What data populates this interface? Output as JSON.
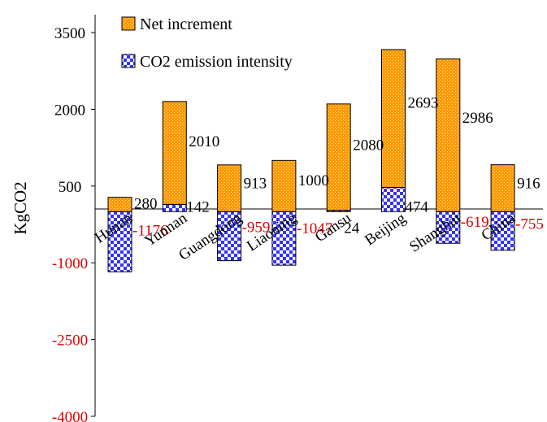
{
  "chart_data": {
    "type": "bar",
    "stacked": true,
    "categories": [
      "Hunan",
      "Yunnan",
      "Guangdong",
      "Liaoning",
      "Gansu",
      "Beijing",
      "Shanghai",
      "China"
    ],
    "series": [
      {
        "name": "CO2 emission intensity",
        "values": [
          -1176,
          142,
          -959,
          -1047,
          24,
          474,
          -619,
          -755
        ],
        "color": "#3333ff",
        "pattern": "checker"
      },
      {
        "name": "Net increment",
        "values": [
          280,
          2010,
          913,
          1000,
          2080,
          2693,
          2986,
          916
        ],
        "color": "#ff9900",
        "pattern": "dots"
      }
    ],
    "value_labels": {
      "CO2 emission intensity": [
        "-1176",
        "142",
        "-959",
        "-1047",
        "24",
        "474",
        "-619",
        "-755"
      ],
      "Net increment": [
        "280",
        "2010",
        "913",
        "1000",
        "2080",
        "2693",
        "2986",
        "916"
      ]
    },
    "ylabel": "KgCO2",
    "xlabel": "",
    "title": "",
    "yticks": [
      3500,
      2000,
      500,
      -1000,
      -2500,
      -4000
    ],
    "ytick_labels": [
      "3500",
      "2000",
      "500",
      "-1000",
      "-2500",
      "-4000"
    ],
    "ylim": [
      -4000,
      3500
    ],
    "grid": false,
    "legend_position": "top-left"
  },
  "legend": [
    {
      "label": "Net increment",
      "series": "Net increment"
    },
    {
      "label": "CO2 emission intensity",
      "series": "CO2 emission intensity"
    }
  ]
}
